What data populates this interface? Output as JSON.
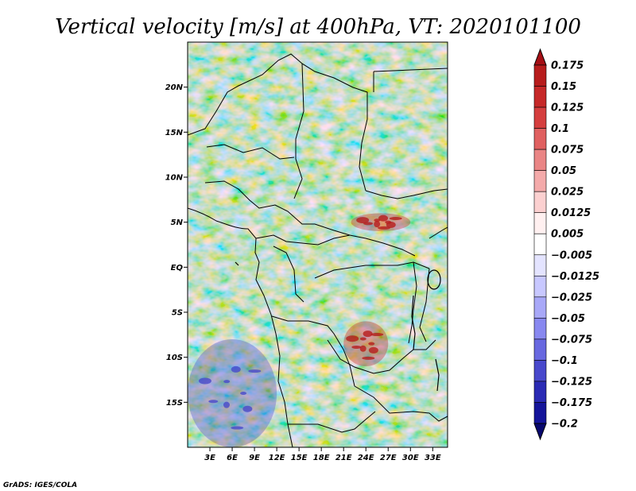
{
  "chart_data": {
    "type": "heatmap",
    "title": "Vertical velocity [m/s] at 400hPa, VT: 2020101100",
    "variable": "Vertical velocity",
    "units": "m/s",
    "level": "400hPa",
    "valid_time": "2020101100",
    "x_axis": {
      "ticks": [
        3,
        6,
        9,
        12,
        15,
        18,
        21,
        24,
        27,
        30,
        33
      ],
      "tick_labels": [
        "3E",
        "6E",
        "9E",
        "12E",
        "15E",
        "18E",
        "21E",
        "24E",
        "27E",
        "30E",
        "33E"
      ],
      "range": [
        0,
        35
      ]
    },
    "y_axis": {
      "ticks": [
        20,
        15,
        10,
        5,
        0,
        -5,
        -10,
        -15
      ],
      "tick_labels": [
        "20N",
        "15N",
        "10N",
        "5N",
        "EQ",
        "5S",
        "10S",
        "15S"
      ],
      "range": [
        -20,
        25
      ]
    },
    "colorbar": {
      "levels": [
        0.175,
        0.15,
        0.125,
        0.1,
        0.075,
        0.05,
        0.025,
        0.0125,
        0.005,
        -0.005,
        -0.0125,
        -0.025,
        -0.05,
        -0.075,
        -0.1,
        -0.125,
        -0.175,
        -0.2
      ],
      "labels": [
        "0.175",
        "0.15",
        "0.125",
        "0.1",
        "0.075",
        "0.05",
        "0.025",
        "0.0125",
        "0.005",
        "−0.005",
        "−0.0125",
        "−0.025",
        "−0.05",
        "−0.075",
        "−0.1",
        "−0.125",
        "−0.175",
        "−0.2"
      ],
      "colors": [
        "#a50f15",
        "#b71c1c",
        "#c62828",
        "#d53e3e",
        "#e06060",
        "#ea8585",
        "#f4aaaa",
        "#fbd0d0",
        "#fff0f0",
        "#ffffff",
        "#e4e4ff",
        "#c8c8ff",
        "#a8a8f8",
        "#8888f0",
        "#6868e0",
        "#4848cc",
        "#2a2ab4",
        "#14149a",
        "#08086e"
      ]
    },
    "features": [
      {
        "name": "Strong ascent band near 5N",
        "lon": [
          22,
          30
        ],
        "lat": [
          4,
          6
        ],
        "sign": "positive"
      },
      {
        "name": "Strong ascent over southern Congo basin",
        "lon": [
          21,
          27
        ],
        "lat": [
          -11,
          -6
        ],
        "sign": "positive"
      },
      {
        "name": "Descent streaks over South Atlantic",
        "lon": [
          0,
          12
        ],
        "lat": [
          -20,
          -8
        ],
        "sign": "negative"
      }
    ]
  },
  "credit": "GrADS: IGES/COLA"
}
